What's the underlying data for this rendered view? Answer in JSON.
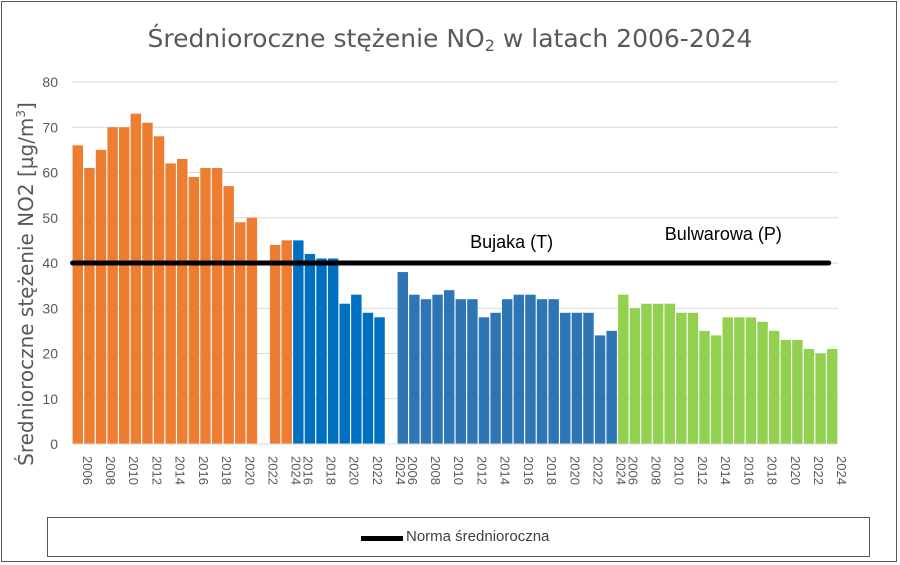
{
  "chart_data": {
    "type": "bar",
    "title_main": "Średnioroczne stężenie NO",
    "title_sub": "2",
    "title_tail": " w latach 2006-2024",
    "ylabel_main": "Średnioroczne stężenie NO2 [µg/m",
    "ylabel_sup": "3",
    "ylabel_tail": "]",
    "ylim": [
      0,
      80
    ],
    "yticks": [
      "0",
      "10",
      "20",
      "30",
      "40",
      "50",
      "60",
      "70",
      "80"
    ],
    "grid": true,
    "norm_value": 40,
    "legend": {
      "label": "Norma średnioroczna",
      "placement": "bottom"
    },
    "series": [
      {
        "color": "#ED7D31",
        "x": [
          "2006",
          "2007",
          "2008",
          "2009",
          "2010",
          "2011",
          "2012",
          "2013",
          "2014",
          "2015",
          "2016",
          "2017",
          "2018",
          "2019",
          "2020",
          "2021",
          "2022",
          "2023",
          "2024"
        ],
        "values": [
          66,
          61,
          65,
          70,
          70,
          73,
          71,
          68,
          62,
          63,
          59,
          61,
          61,
          57,
          49,
          50,
          null,
          44,
          45
        ],
        "tick_labels": [
          "2006",
          "2008",
          "2010",
          "2012",
          "2014",
          "2016",
          "2018",
          "2020",
          "2022",
          "2024"
        ]
      },
      {
        "color": "#0070C0",
        "x": [
          "2016",
          "2017",
          "2018",
          "2019",
          "2020",
          "2021",
          "2022",
          "2023",
          "2024"
        ],
        "values": [
          45,
          42,
          41,
          41,
          31,
          33,
          29,
          28,
          null
        ],
        "tick_labels": [
          "2016",
          "2018",
          "2020",
          "2022",
          "2024"
        ]
      },
      {
        "name": "Bujaka (T)",
        "color": "#2E75B6",
        "x": [
          "2006",
          "2007",
          "2008",
          "2009",
          "2010",
          "2011",
          "2012",
          "2013",
          "2014",
          "2015",
          "2016",
          "2017",
          "2018",
          "2019",
          "2020",
          "2021",
          "2022",
          "2023",
          "2024"
        ],
        "values": [
          38,
          33,
          32,
          33,
          34,
          32,
          32,
          28,
          29,
          32,
          33,
          33,
          32,
          32,
          29,
          29,
          29,
          24,
          25
        ],
        "tick_labels": [
          "2006",
          "2008",
          "2010",
          "2012",
          "2014",
          "2016",
          "2018",
          "2020",
          "2022",
          "2024"
        ]
      },
      {
        "name": "Bulwarowa (P)",
        "color": "#92D050",
        "x": [
          "2006",
          "2007",
          "2008",
          "2009",
          "2010",
          "2011",
          "2012",
          "2013",
          "2014",
          "2015",
          "2016",
          "2017",
          "2018",
          "2019",
          "2020",
          "2021",
          "2022",
          "2023",
          "2024"
        ],
        "values": [
          33,
          30,
          31,
          31,
          31,
          29,
          29,
          25,
          24,
          28,
          28,
          28,
          27,
          25,
          23,
          23,
          21,
          20,
          21
        ],
        "tick_labels": [
          "2006",
          "2008",
          "2010",
          "2012",
          "2014",
          "2016",
          "2018",
          "2020",
          "2022",
          "2024"
        ]
      }
    ]
  }
}
